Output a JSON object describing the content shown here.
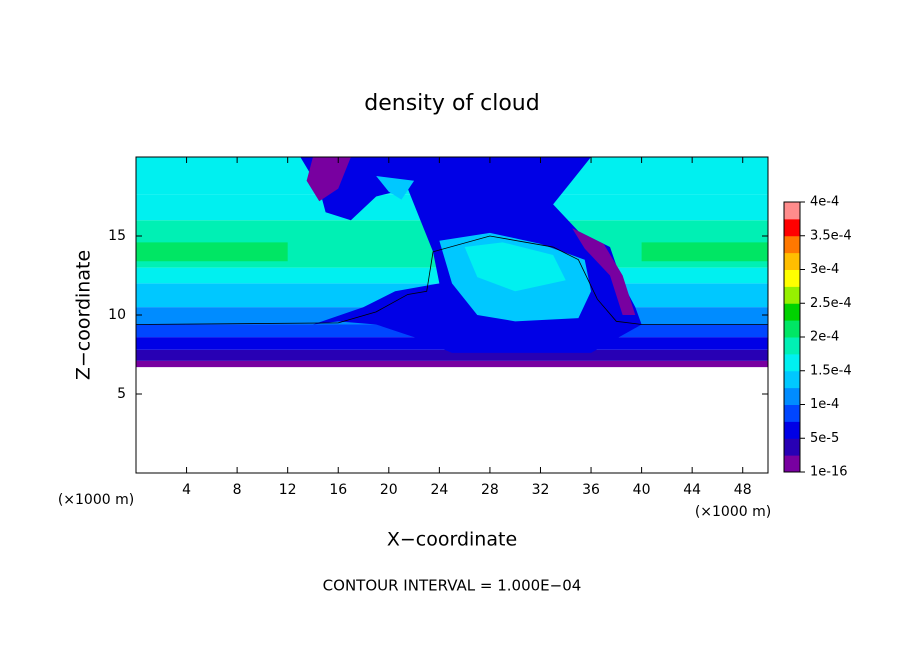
{
  "chart_data": {
    "type": "contour",
    "title": "density of cloud",
    "xlabel": "X−coordinate",
    "ylabel": "Z−coordinate",
    "x_unit_label": "(×1000 m)",
    "y_unit_label": "(×1000 m)",
    "footnote": "CONTOUR INTERVAL = 1.000E−04",
    "xlim": [
      0,
      50
    ],
    "xticks": [
      4,
      8,
      12,
      16,
      20,
      24,
      28,
      32,
      36,
      40,
      44,
      48
    ],
    "ylim": [
      0,
      20
    ],
    "yticks": [
      5,
      10,
      15
    ],
    "colorbar_ticks": [
      {
        "value": 1e-16,
        "label": "1e-16"
      },
      {
        "value": 5e-05,
        "label": "5e-5"
      },
      {
        "value": 0.0001,
        "label": "1e-4"
      },
      {
        "value": 0.00015,
        "label": "1.5e-4"
      },
      {
        "value": 0.0002,
        "label": "2e-4"
      },
      {
        "value": 0.00025,
        "label": "2.5e-4"
      },
      {
        "value": 0.0003,
        "label": "3e-4"
      },
      {
        "value": 0.00035,
        "label": "3.5e-4"
      },
      {
        "value": 0.0004,
        "label": "4e-4"
      }
    ],
    "colors": [
      "#7800a0",
      "#2800b4",
      "#0000e6",
      "#0046ff",
      "#008cff",
      "#00c8ff",
      "#00f0f0",
      "#00f0b4",
      "#00e664",
      "#00d200",
      "#96f000",
      "#ffff00",
      "#ffbe00",
      "#ff7800",
      "#ff0000",
      "#ff8c8c"
    ]
  }
}
